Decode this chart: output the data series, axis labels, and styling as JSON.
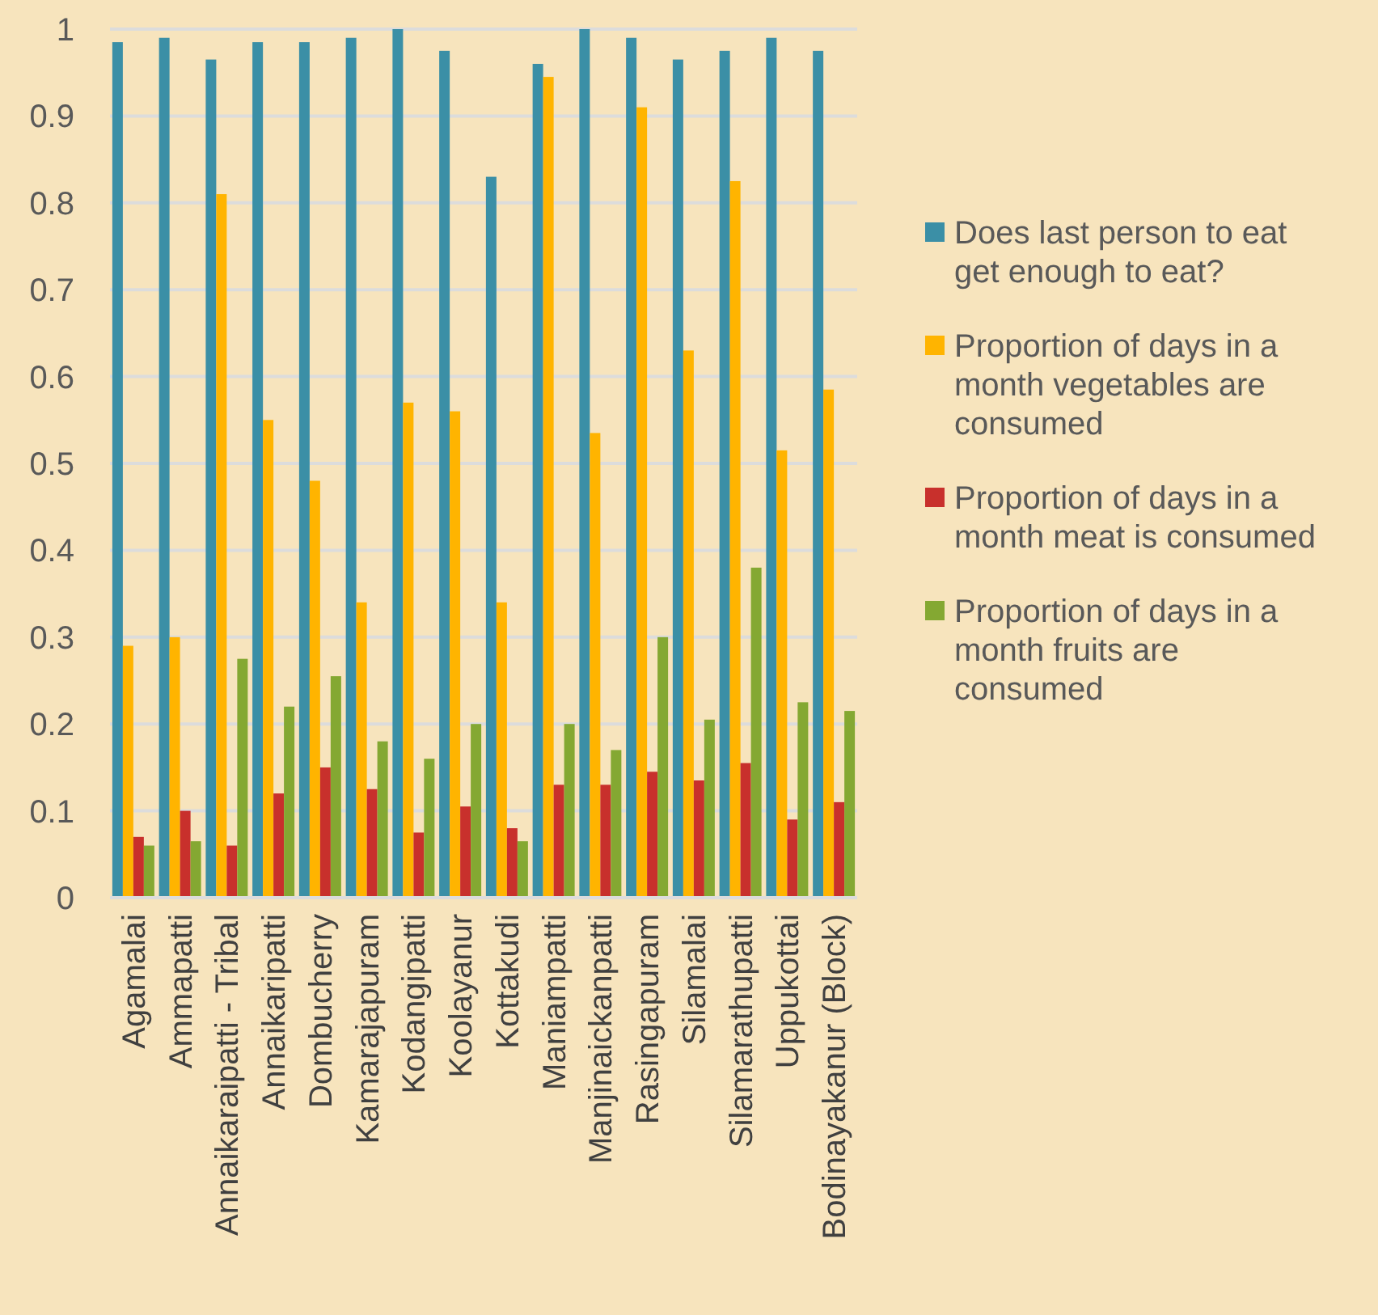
{
  "chart_data": {
    "type": "bar",
    "categories": [
      "Agamalai",
      "Ammapatti",
      "Annaikaraipatti - Tribal",
      "Annaikaripatti",
      "Dombucherry",
      "Kamarajapuram",
      "Kodangipatti",
      "Koolayanur",
      "Kottakudi",
      "Maniampatti",
      "Manjinaickanpatti",
      "Rasingapuram",
      "Silamalai",
      "Silamarathupatti",
      "Uppukottai",
      "Bodinayakanur (Block)"
    ],
    "series": [
      {
        "name": "Does last person to eat get enough to eat?",
        "color": "#3b8fa6",
        "values": [
          0.985,
          0.99,
          0.965,
          0.985,
          0.985,
          0.99,
          1.0,
          0.975,
          0.83,
          0.96,
          1.0,
          0.99,
          0.965,
          0.975,
          0.99,
          0.975
        ]
      },
      {
        "name": "Proportion of days in a month vegetables are consumed",
        "color": "#ffb400",
        "values": [
          0.29,
          0.3,
          0.81,
          0.55,
          0.48,
          0.34,
          0.57,
          0.56,
          0.34,
          0.945,
          0.535,
          0.91,
          0.63,
          0.825,
          0.515,
          0.585
        ]
      },
      {
        "name": "Proportion of days in a month meat is consumed",
        "color": "#c8302c",
        "values": [
          0.07,
          0.1,
          0.06,
          0.12,
          0.15,
          0.125,
          0.075,
          0.105,
          0.08,
          0.13,
          0.13,
          0.145,
          0.135,
          0.155,
          0.09,
          0.11
        ]
      },
      {
        "name": "Proportion of days in a month fruits are consumed",
        "color": "#84a832",
        "values": [
          0.06,
          0.065,
          0.275,
          0.22,
          0.255,
          0.18,
          0.16,
          0.2,
          0.065,
          0.2,
          0.17,
          0.3,
          0.205,
          0.38,
          0.225,
          0.215
        ]
      }
    ],
    "ylim": [
      0,
      1
    ],
    "yticks": [
      0,
      0.1,
      0.2,
      0.3,
      0.4,
      0.5,
      0.6,
      0.7,
      0.8,
      0.9,
      1
    ],
    "grid": "y",
    "legend": "right"
  }
}
